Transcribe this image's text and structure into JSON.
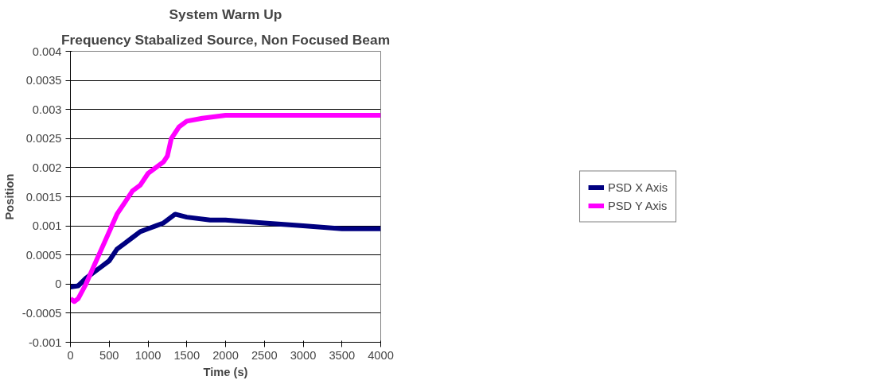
{
  "chart_data": {
    "type": "line",
    "title": "System Warm Up",
    "subtitle": "Frequency Stabalized Source, Non Focused Beam",
    "xlabel": "Time (s)",
    "ylabel": "Position",
    "xlim": [
      0,
      4000
    ],
    "xticks": [
      0,
      500,
      1000,
      1500,
      2000,
      2500,
      3000,
      3500,
      4000
    ],
    "ylim": [
      -0.001,
      0.004
    ],
    "yticks": [
      -0.001,
      -0.0005,
      0,
      0.0005,
      0.001,
      0.0015,
      0.002,
      0.0025,
      0.003,
      0.0035,
      0.004
    ],
    "grid": "y",
    "legend": "right",
    "line_style": "solid",
    "series": [
      {
        "name": "PSD X Axis",
        "color": "#000080",
        "x": [
          0,
          100,
          200,
          300,
          400,
          500,
          600,
          700,
          800,
          900,
          1000,
          1100,
          1200,
          1350,
          1500,
          1800,
          2000,
          2500,
          3000,
          3500,
          4000
        ],
        "values": [
          -5e-05,
          -3e-05,
          0.0001,
          0.0002,
          0.0003,
          0.0004,
          0.0006,
          0.0007,
          0.0008,
          0.0009,
          0.00095,
          0.001,
          0.00105,
          0.0012,
          0.00115,
          0.0011,
          0.0011,
          0.00105,
          0.001,
          0.00095,
          0.00095
        ]
      },
      {
        "name": "PSD Y Axis",
        "color": "#ff00ff",
        "x": [
          0,
          50,
          100,
          200,
          300,
          400,
          500,
          600,
          700,
          800,
          900,
          1000,
          1100,
          1200,
          1250,
          1300,
          1350,
          1400,
          1500,
          1700,
          2000,
          2500,
          3000,
          3500,
          4000
        ],
        "values": [
          -0.00025,
          -0.0003,
          -0.00025,
          0.0,
          0.0003,
          0.0006,
          0.0009,
          0.0012,
          0.0014,
          0.0016,
          0.0017,
          0.0019,
          0.002,
          0.0021,
          0.0022,
          0.0025,
          0.0026,
          0.0027,
          0.0028,
          0.00285,
          0.0029,
          0.0029,
          0.0029,
          0.0029,
          0.0029
        ]
      }
    ]
  }
}
